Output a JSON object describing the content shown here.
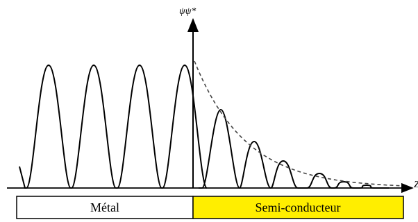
{
  "axes": {
    "y_label": "ψψ*",
    "x_label": "Z"
  },
  "regions": [
    {
      "label": "Métal",
      "color": "#ffffff"
    },
    {
      "label": "Semi-conducteur",
      "color": "#ffee00"
    }
  ],
  "colors": {
    "stroke": "#000000",
    "envelope": "#444444"
  }
}
